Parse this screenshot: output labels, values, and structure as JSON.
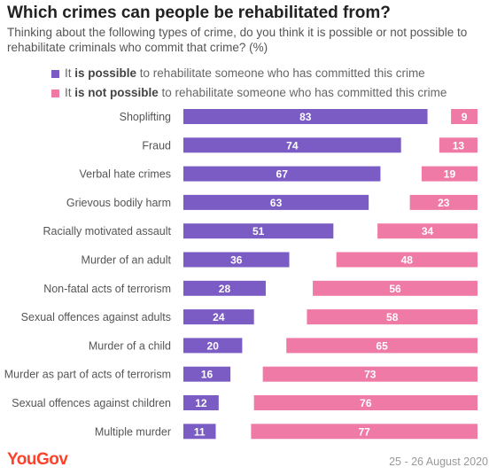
{
  "header": {
    "title": "Which crimes can people be rehabilitated from?",
    "subtitle": "Thinking about the following types of crime, do you think it is possible or not possible to rehabilitate criminals who commit that crime? (%)"
  },
  "legend": {
    "possible": {
      "pre": "It ",
      "bold": "is possible",
      "post": " to rehabilitate someone who has committed this crime"
    },
    "not_possible": {
      "pre": "It ",
      "bold": "is not possible",
      "post": " to rehabilitate someone who has committed this crime"
    }
  },
  "colors": {
    "possible": "#7b5cc4",
    "not_possible": "#f07aa6",
    "brand": "#ff412c"
  },
  "chart_data": {
    "type": "bar",
    "orientation": "horizontal",
    "categories": [
      "Shoplifting",
      "Fraud",
      "Verbal hate crimes",
      "Grievous bodily harm",
      "Racially motivated assault",
      "Murder of an adult",
      "Non-fatal acts of terrorism",
      "Sexual offences against adults",
      "Murder of a child",
      "Murder as part of acts of terrorism",
      "Sexual offences against children",
      "Multiple murder"
    ],
    "series": [
      {
        "name": "It is possible to rehabilitate someone who has committed this crime",
        "align": "left",
        "values": [
          83,
          74,
          67,
          63,
          51,
          36,
          28,
          24,
          20,
          16,
          12,
          11
        ]
      },
      {
        "name": "It is not possible to rehabilitate someone who has committed this crime",
        "align": "right",
        "values": [
          9,
          13,
          19,
          23,
          34,
          48,
          56,
          58,
          65,
          73,
          76,
          77
        ]
      }
    ],
    "xlim": [
      0,
      100
    ],
    "data_labels": true,
    "grid": false
  },
  "footer": {
    "brand": "YouGov",
    "date": "25 - 26 August 2020"
  }
}
